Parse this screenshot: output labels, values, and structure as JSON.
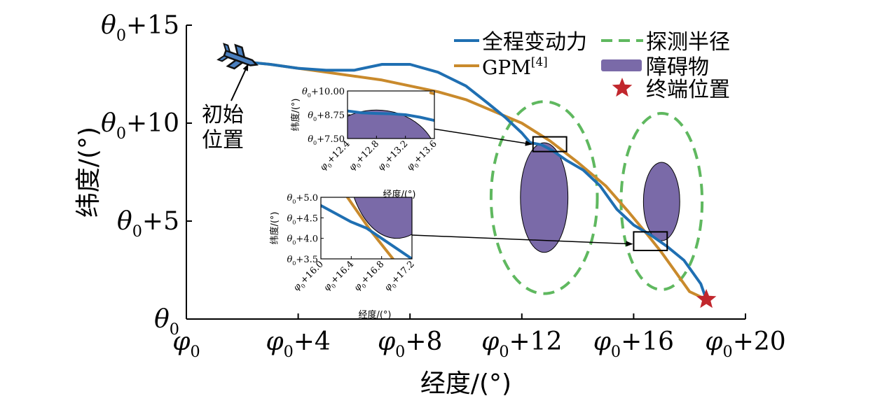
{
  "chart_data": {
    "type": "line",
    "xlabel": "经度/(°)",
    "ylabel": "纬度/(°)",
    "xlim": [
      0,
      20
    ],
    "ylim": [
      0,
      15
    ],
    "xticks": [
      {
        "v": 0,
        "base": "φ",
        "sub": "0",
        "suffix": ""
      },
      {
        "v": 4,
        "base": "φ",
        "sub": "0",
        "suffix": "+4"
      },
      {
        "v": 8,
        "base": "φ",
        "sub": "0",
        "suffix": "+8"
      },
      {
        "v": 12,
        "base": "φ",
        "sub": "0",
        "suffix": "+12"
      },
      {
        "v": 16,
        "base": "φ",
        "sub": "0",
        "suffix": "+16"
      },
      {
        "v": 20,
        "base": "φ",
        "sub": "0",
        "suffix": "+20"
      }
    ],
    "yticks": [
      {
        "v": 0,
        "base": "θ",
        "sub": "0",
        "suffix": ""
      },
      {
        "v": 5,
        "base": "θ",
        "sub": "0",
        "suffix": "+5"
      },
      {
        "v": 10,
        "base": "θ",
        "sub": "0",
        "suffix": "+10"
      },
      {
        "v": 15,
        "base": "θ",
        "sub": "0",
        "suffix": "+15"
      }
    ],
    "grid": false,
    "legend_position": "top-right",
    "series": [
      {
        "name": "全程变动力",
        "color": "#1f6fb2",
        "x": [
          2.3,
          3.0,
          4.0,
          5.0,
          6.0,
          7.0,
          8.0,
          9.0,
          10.0,
          10.8,
          11.4,
          12.0,
          12.3,
          12.7,
          13.1,
          13.6,
          14.2,
          14.8,
          15.4,
          16.0,
          16.6,
          17.2,
          17.8,
          18.4,
          18.6
        ],
        "y": [
          13.1,
          13.0,
          12.8,
          12.7,
          12.7,
          13.0,
          13.0,
          12.6,
          11.9,
          11.0,
          10.3,
          9.5,
          9.0,
          8.9,
          8.6,
          8.1,
          7.6,
          6.8,
          5.6,
          4.8,
          4.3,
          3.7,
          3.0,
          1.8,
          1.0
        ],
        "inset1": {
          "x": [
            12.4,
            12.6,
            12.8,
            13.0,
            13.2,
            13.4,
            13.6
          ],
          "y": [
            8.95,
            8.85,
            8.82,
            8.8,
            8.75,
            8.62,
            8.45
          ]
        },
        "inset2": {
          "x": [
            16.0,
            16.2,
            16.4,
            16.6,
            16.8,
            17.0,
            17.2
          ],
          "y": [
            4.8,
            4.6,
            4.4,
            4.25,
            4.0,
            3.75,
            3.5
          ]
        }
      },
      {
        "name": "GPM[4]",
        "name_base": "GPM",
        "name_sup": "[4]",
        "color": "#c98a2c",
        "x": [
          2.3,
          3.0,
          4.0,
          5.0,
          6.0,
          7.0,
          8.0,
          9.0,
          10.0,
          11.0,
          12.0,
          13.0,
          14.0,
          15.0,
          15.8,
          16.5,
          17.0,
          17.5,
          18.0,
          18.6
        ],
        "y": [
          13.1,
          13.0,
          12.8,
          12.6,
          12.4,
          12.2,
          11.9,
          11.6,
          11.2,
          10.6,
          10.0,
          9.1,
          8.0,
          6.8,
          5.5,
          4.3,
          3.4,
          2.4,
          1.4,
          1.0
        ],
        "inset1": {
          "x": [
            13.55,
            13.6
          ],
          "y": [
            9.9,
            9.85
          ]
        },
        "inset2": {
          "x": [
            16.35,
            16.5,
            16.65,
            16.8,
            16.95
          ],
          "y": [
            5.0,
            4.6,
            4.2,
            3.85,
            3.5
          ]
        }
      }
    ],
    "obstacles": [
      {
        "cx": 12.8,
        "cy": 6.2,
        "rx": 0.85,
        "ry": 2.8
      },
      {
        "cx": 17.0,
        "cy": 6.0,
        "rx": 0.65,
        "ry": 2.0
      }
    ],
    "detection_radius": [
      {
        "cx": 12.8,
        "cy": 6.2,
        "rx": 1.9,
        "ry": 4.9
      },
      {
        "cx": 17.0,
        "cy": 6.0,
        "rx": 1.45,
        "ry": 4.5
      }
    ],
    "initial_position": {
      "x": 1.9,
      "y": 13.3,
      "label_line1": "初始",
      "label_line2": "位置"
    },
    "terminal_position": {
      "x": 18.6,
      "y": 1.0
    },
    "zoom_boxes": [
      {
        "x0": 12.4,
        "x1": 13.6,
        "y0": 8.55,
        "y1": 9.3
      },
      {
        "x0": 16.0,
        "x1": 17.2,
        "y0": 3.5,
        "y1": 4.45
      }
    ],
    "legend": [
      {
        "label": "全程变动力",
        "kind": "line",
        "color": "#1f6fb2"
      },
      {
        "label": "探测半径",
        "kind": "dash",
        "color": "#5fb85f"
      },
      {
        "label_base": "GPM",
        "label_sup": "[4]",
        "kind": "line",
        "color": "#c98a2c"
      },
      {
        "label": "障碍物",
        "kind": "ellipse",
        "color": "#7a6aa8"
      },
      {
        "label": "终端位置",
        "kind": "star",
        "color": "#c1272d"
      }
    ],
    "inset1": {
      "xlim": [
        12.4,
        13.6
      ],
      "ylim": [
        7.5,
        10.0
      ],
      "xticks": [
        {
          "v": 12.4,
          "base": "φ",
          "sub": "0",
          "suffix": "+12.4"
        },
        {
          "v": 12.8,
          "base": "φ",
          "sub": "0",
          "suffix": "+12.8"
        },
        {
          "v": 13.2,
          "base": "φ",
          "sub": "0",
          "suffix": "+13.2"
        },
        {
          "v": 13.6,
          "base": "φ",
          "sub": "0",
          "suffix": "+13.6"
        }
      ],
      "yticks": [
        {
          "v": 7.5,
          "base": "θ",
          "sub": "0",
          "suffix": "+7.50"
        },
        {
          "v": 8.75,
          "base": "θ",
          "sub": "0",
          "suffix": "+8.75"
        },
        {
          "v": 10.0,
          "base": "θ",
          "sub": "0",
          "suffix": "+10.00"
        }
      ],
      "xlabel": "经度/(°)",
      "ylabel": "纬度/(°)",
      "obstacle": {
        "cx": 12.8,
        "cy": 6.2,
        "rx": 0.85,
        "ry": 2.8
      }
    },
    "inset2": {
      "xlim": [
        16.0,
        17.2
      ],
      "ylim": [
        3.5,
        5.0
      ],
      "xticks": [
        {
          "v": 16.0,
          "base": "φ",
          "sub": "0",
          "suffix": "+16.0"
        },
        {
          "v": 16.4,
          "base": "φ",
          "sub": "0",
          "suffix": "+16.4"
        },
        {
          "v": 16.8,
          "base": "φ",
          "sub": "0",
          "suffix": "+16.8"
        },
        {
          "v": 17.2,
          "base": "φ",
          "sub": "0",
          "suffix": "+17.2"
        }
      ],
      "yticks": [
        {
          "v": 3.5,
          "base": "θ",
          "sub": "0",
          "suffix": "+3.5"
        },
        {
          "v": 4.0,
          "base": "θ",
          "sub": "0",
          "suffix": "+4.0"
        },
        {
          "v": 4.5,
          "base": "θ",
          "sub": "0",
          "suffix": "+4.5"
        },
        {
          "v": 5.0,
          "base": "θ",
          "sub": "0",
          "suffix": "+5.0"
        }
      ],
      "xlabel": "经度/(°)",
      "ylabel": "纬度/(°)",
      "obstacle": {
        "cx": 17.0,
        "cy": 6.0,
        "rx": 0.65,
        "ry": 2.0
      }
    }
  },
  "colors": {
    "obstacle_fill": "#7a6aa8",
    "detection": "#5fb85f",
    "star": "#c1272d",
    "vehicle": "#4a7fbf"
  }
}
